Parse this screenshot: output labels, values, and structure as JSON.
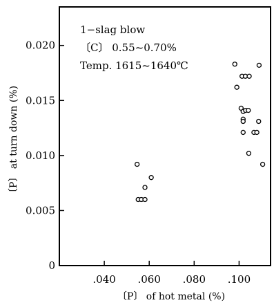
{
  "chart_data": {
    "type": "scatter",
    "xlabel": "〔P〕 of hot metal (%)",
    "ylabel": "〔P〕 at turn down (%)",
    "xlim": [
      0.02,
      0.114
    ],
    "ylim": [
      0,
      0.0235
    ],
    "x_ticks": [
      {
        "value": 0.04,
        "label": ".040"
      },
      {
        "value": 0.06,
        "label": ".060"
      },
      {
        "value": 0.08,
        "label": ".080"
      },
      {
        "value": 0.1,
        "label": ".100"
      }
    ],
    "y_ticks": [
      {
        "value": 0,
        "label": "0"
      },
      {
        "value": 0.005,
        "label": "0.005"
      },
      {
        "value": 0.01,
        "label": "0.010"
      },
      {
        "value": 0.015,
        "label": "0.015"
      },
      {
        "value": 0.02,
        "label": "0.020"
      }
    ],
    "annotations": [
      "1−slag blow",
      "〔C〕 0.55~0.70%",
      "Temp. 1615~1640℃"
    ],
    "grid": false,
    "marker": "open-circle",
    "points": [
      {
        "x": 0.0546,
        "y": 0.0092
      },
      {
        "x": 0.0551,
        "y": 0.006
      },
      {
        "x": 0.0565,
        "y": 0.006
      },
      {
        "x": 0.0581,
        "y": 0.006
      },
      {
        "x": 0.0581,
        "y": 0.0071
      },
      {
        "x": 0.0609,
        "y": 0.008
      },
      {
        "x": 0.0981,
        "y": 0.0183
      },
      {
        "x": 0.099,
        "y": 0.0162
      },
      {
        "x": 0.1013,
        "y": 0.0172
      },
      {
        "x": 0.1028,
        "y": 0.0172
      },
      {
        "x": 0.1045,
        "y": 0.0172
      },
      {
        "x": 0.1089,
        "y": 0.0182
      },
      {
        "x": 0.1009,
        "y": 0.0143
      },
      {
        "x": 0.1018,
        "y": 0.014
      },
      {
        "x": 0.1029,
        "y": 0.0141
      },
      {
        "x": 0.1041,
        "y": 0.0141
      },
      {
        "x": 0.1018,
        "y": 0.0133
      },
      {
        "x": 0.1018,
        "y": 0.0131
      },
      {
        "x": 0.1018,
        "y": 0.0121
      },
      {
        "x": 0.1066,
        "y": 0.0121
      },
      {
        "x": 0.1079,
        "y": 0.0121
      },
      {
        "x": 0.1087,
        "y": 0.0131
      },
      {
        "x": 0.1043,
        "y": 0.0102
      },
      {
        "x": 0.1105,
        "y": 0.0092
      }
    ]
  }
}
